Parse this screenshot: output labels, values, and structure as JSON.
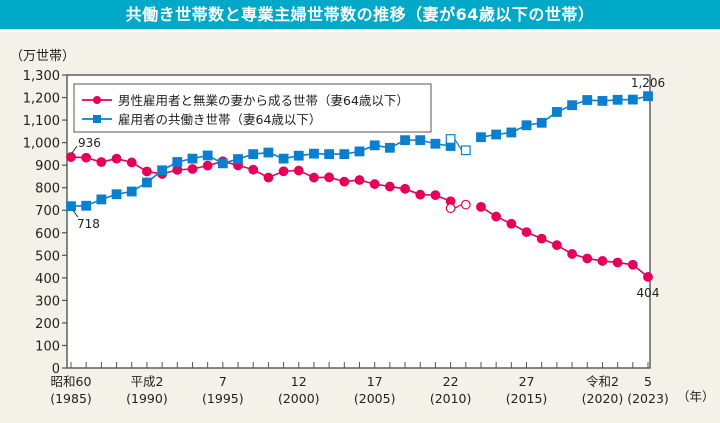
{
  "header": {
    "title": "共働き世帯数と専業主婦世帯数の推移（妻が64歳以下の世帯）"
  },
  "chart_data": {
    "type": "line",
    "title": "共働き世帯数と専業主婦世帯数の推移（妻が64歳以下の世帯）",
    "ylabel": "（万世帯）",
    "xlabel": "（年）",
    "ylim": [
      0,
      1300
    ],
    "yticks": [
      0,
      100,
      200,
      300,
      400,
      500,
      600,
      700,
      800,
      900,
      1000,
      1100,
      1200,
      1300
    ],
    "ytick_labels": [
      "0",
      "100",
      "200",
      "300",
      "400",
      "500",
      "600",
      "700",
      "800",
      "900",
      "1,000",
      "1,100",
      "1,200",
      "1,300"
    ],
    "xlim": [
      1985,
      2023
    ],
    "xtick_labels": [
      {
        "year": 1985,
        "era": "昭和60",
        "ad": "(1985)"
      },
      {
        "year": 1990,
        "era": "平成2",
        "ad": "(1990)"
      },
      {
        "year": 1995,
        "era": "7",
        "ad": "(1995)"
      },
      {
        "year": 2000,
        "era": "12",
        "ad": "(2000)"
      },
      {
        "year": 2005,
        "era": "17",
        "ad": "(2005)"
      },
      {
        "year": 2010,
        "era": "22",
        "ad": "(2010)"
      },
      {
        "year": 2015,
        "era": "27",
        "ad": "(2015)"
      },
      {
        "year": 2020,
        "era": "令和2",
        "ad": "(2020)"
      },
      {
        "year": 2023,
        "era": "5",
        "ad": "(2023)"
      }
    ],
    "legend_position": "top-left",
    "x": [
      1985,
      1986,
      1987,
      1988,
      1989,
      1990,
      1991,
      1992,
      1993,
      1994,
      1995,
      1996,
      1997,
      1998,
      1999,
      2000,
      2001,
      2002,
      2003,
      2004,
      2005,
      2006,
      2007,
      2008,
      2009,
      2010,
      2011,
      2012,
      2013,
      2014,
      2015,
      2016,
      2017,
      2018,
      2019,
      2020,
      2021,
      2022,
      2023
    ],
    "series": [
      {
        "name": "男性雇用者と無業の妻から成る世帯（妻64歳以下）",
        "color": "#e5005a",
        "marker": "circle",
        "values": [
          936,
          933,
          914,
          929,
          912,
          872,
          861,
          879,
          883,
          898,
          917,
          899,
          880,
          845,
          873,
          876,
          845,
          846,
          827,
          834,
          816,
          805,
          795,
          769,
          767,
          740,
          725,
          715,
          672,
          640,
          603,
          574,
          545,
          506,
          486,
          475,
          468,
          458,
          404
        ],
        "hollow_indices": [
          25,
          26
        ],
        "solid_override_indices": [
          25
        ],
        "gap_after_index": 26,
        "end_labels": [
          {
            "index": 0,
            "text": "936"
          },
          {
            "index": 38,
            "text": "404"
          }
        ]
      },
      {
        "name": "雇用者の共働き世帯（妻64歳以下）",
        "color": "#0a7fd0",
        "marker": "square",
        "values": [
          718,
          720,
          748,
          771,
          783,
          823,
          877,
          914,
          929,
          943,
          908,
          927,
          949,
          956,
          929,
          942,
          951,
          949,
          949,
          961,
          988,
          977,
          1011,
          1011,
          995,
          985,
          966,
          1024,
          1036,
          1045,
          1077,
          1088,
          1136,
          1166,
          1189,
          1185,
          1190,
          1191,
          1206
        ],
        "hollow_indices": [
          25,
          26
        ],
        "solid_override_indices": [
          25
        ],
        "gap_after_index": 26,
        "end_labels": [
          {
            "index": 0,
            "text": "718"
          },
          {
            "index": 38,
            "text": "1,206"
          }
        ]
      }
    ]
  }
}
